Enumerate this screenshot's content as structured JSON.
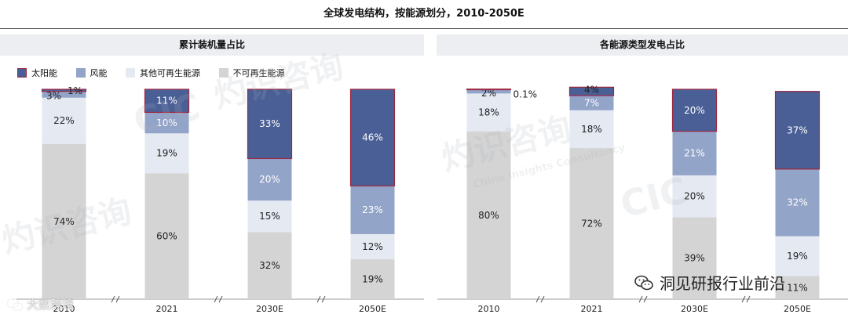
{
  "title": "全球发电结构，按能源划分，2010-2050E",
  "colors": {
    "solar": "#4a5f95",
    "wind": "#93a4c9",
    "other_renewable": "#e5e9f2",
    "non_renewable": "#d4d4d4",
    "highlight_border": "#9c2740",
    "panel_bg": "#eceef1"
  },
  "legend": [
    {
      "key": "solar",
      "label": "太阳能",
      "color_ref": "solar"
    },
    {
      "key": "wind",
      "label": "风能",
      "color_ref": "wind"
    },
    {
      "key": "other_renewable",
      "label": "其他可再生能源",
      "color_ref": "other_renewable"
    },
    {
      "key": "non_renewable",
      "label": "不可再生能源",
      "color_ref": "non_renewable"
    }
  ],
  "chart_data": [
    {
      "type": "bar",
      "stacked": true,
      "percent": true,
      "title": "累计装机量占比",
      "categories": [
        "2010",
        "2021",
        "2030E",
        "2050E"
      ],
      "series": [
        {
          "name": "不可再生能源",
          "values": [
            74,
            60,
            32,
            19
          ],
          "labels": [
            "74%",
            "60%",
            "32%",
            "19%"
          ]
        },
        {
          "name": "其他可再生能源",
          "values": [
            22,
            19,
            15,
            12
          ],
          "labels": [
            "22%",
            "19%",
            "15%",
            "12%"
          ]
        },
        {
          "name": "风能",
          "values": [
            3,
            10,
            20,
            23
          ],
          "labels": [
            "3%",
            "10%",
            "20%",
            "23%"
          ]
        },
        {
          "name": "太阳能",
          "values": [
            1,
            11,
            33,
            46
          ],
          "labels": [
            "1%",
            "11%",
            "33%",
            "46%"
          ]
        }
      ]
    },
    {
      "type": "bar",
      "stacked": true,
      "percent": true,
      "title": "各能源类型发电占比",
      "categories": [
        "2010",
        "2021",
        "2030E",
        "2050E"
      ],
      "series": [
        {
          "name": "不可再生能源",
          "values": [
            80,
            72,
            39,
            11
          ],
          "labels": [
            "80%",
            "72%",
            "39%",
            "11%"
          ]
        },
        {
          "name": "其他可再生能源",
          "values": [
            18,
            18,
            20,
            19
          ],
          "labels": [
            "18%",
            "18%",
            "20%",
            "19%"
          ]
        },
        {
          "name": "风能",
          "values": [
            2,
            7,
            21,
            32
          ],
          "labels": [
            "2%",
            "7%",
            "21%",
            "32%"
          ]
        },
        {
          "name": "太阳能",
          "values": [
            0.1,
            4,
            20,
            37
          ],
          "labels": [
            "0.1%",
            "4%",
            "20%",
            "37%"
          ]
        }
      ]
    }
  ],
  "watermarks": [
    "CIC",
    "灼识咨询",
    "China Insights Consultancy"
  ],
  "wechat_caption": "洞见研报行业前沿",
  "corner_caption": "大数跨境"
}
